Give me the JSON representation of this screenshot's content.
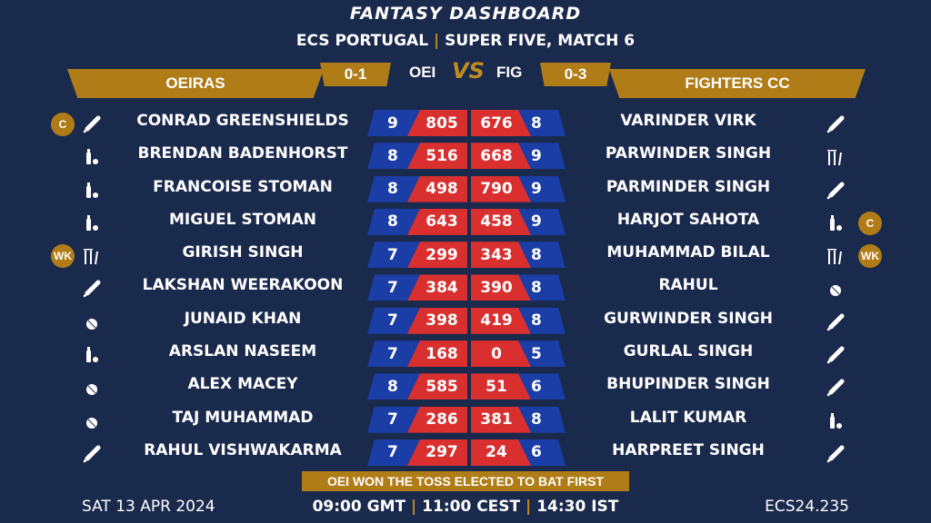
{
  "header": {
    "title": "FANTASY DASHBOARD",
    "league": "ECS PORTUGAL",
    "separator": "|",
    "match": "SUPER FIVE, MATCH 6"
  },
  "teams": {
    "left": {
      "name": "OEIRAS",
      "abbr": "OEI",
      "record": "0-1"
    },
    "right": {
      "name": "FIGHTERS CC",
      "abbr": "FIG",
      "record": "0-3"
    },
    "vs": "VS"
  },
  "players_left": [
    {
      "name": "CONRAD GREENSHIELDS",
      "credits": "9",
      "points": "805",
      "role_icon": "bat-icon",
      "badge": "C"
    },
    {
      "name": "BRENDAN BADENHORST",
      "credits": "8",
      "points": "516",
      "role_icon": "allrounder-icon",
      "badge": ""
    },
    {
      "name": "FRANCOISE STOMAN",
      "credits": "8",
      "points": "498",
      "role_icon": "allrounder-icon",
      "badge": ""
    },
    {
      "name": "MIGUEL STOMAN",
      "credits": "8",
      "points": "643",
      "role_icon": "allrounder-icon",
      "badge": ""
    },
    {
      "name": "GIRISH SINGH",
      "credits": "7",
      "points": "299",
      "role_icon": "wicket-icon",
      "badge": "WK"
    },
    {
      "name": "LAKSHAN WEERAKOON",
      "credits": "7",
      "points": "384",
      "role_icon": "bat-icon",
      "badge": ""
    },
    {
      "name": "JUNAID KHAN",
      "credits": "7",
      "points": "398",
      "role_icon": "ball-icon",
      "badge": ""
    },
    {
      "name": "ARSLAN NASEEM",
      "credits": "7",
      "points": "168",
      "role_icon": "allrounder-icon",
      "badge": ""
    },
    {
      "name": "ALEX MACEY",
      "credits": "8",
      "points": "585",
      "role_icon": "ball-icon",
      "badge": ""
    },
    {
      "name": "TAJ MUHAMMAD",
      "credits": "7",
      "points": "286",
      "role_icon": "ball-icon",
      "badge": ""
    },
    {
      "name": "RAHUL VISHWAKARMA",
      "credits": "7",
      "points": "297",
      "role_icon": "bat-icon",
      "badge": ""
    }
  ],
  "players_right": [
    {
      "name": "VARINDER VIRK",
      "credits": "8",
      "points": "676",
      "role_icon": "bat-icon",
      "badge": ""
    },
    {
      "name": "PARWINDER SINGH",
      "credits": "9",
      "points": "668",
      "role_icon": "wicket-icon",
      "badge": ""
    },
    {
      "name": "PARMINDER SINGH",
      "credits": "9",
      "points": "790",
      "role_icon": "bat-icon",
      "badge": ""
    },
    {
      "name": "HARJOT SAHOTA",
      "credits": "9",
      "points": "458",
      "role_icon": "allrounder-icon",
      "badge": "C"
    },
    {
      "name": "MUHAMMAD BILAL",
      "credits": "8",
      "points": "343",
      "role_icon": "wicket-icon",
      "badge": "WK"
    },
    {
      "name": "RAHUL",
      "credits": "8",
      "points": "390",
      "role_icon": "ball-icon",
      "badge": ""
    },
    {
      "name": "GURWINDER SINGH",
      "credits": "8",
      "points": "419",
      "role_icon": "bat-icon",
      "badge": ""
    },
    {
      "name": "GURLAL SINGH",
      "credits": "5",
      "points": "0",
      "role_icon": "bat-icon",
      "badge": ""
    },
    {
      "name": "BHUPINDER SINGH",
      "credits": "6",
      "points": "51",
      "role_icon": "bat-icon",
      "badge": ""
    },
    {
      "name": "LALIT KUMAR",
      "credits": "8",
      "points": "381",
      "role_icon": "allrounder-icon",
      "badge": ""
    },
    {
      "name": "HARPREET SINGH",
      "credits": "6",
      "points": "24",
      "role_icon": "bat-icon",
      "badge": ""
    }
  ],
  "toss": "OEI WON THE TOSS ELECTED TO BAT FIRST",
  "footer": {
    "date": "SAT 13 APR 2024",
    "time_gmt": "09:00 GMT",
    "time_cest": "11:00 CEST",
    "time_ist": "14:30 IST",
    "separator": "|",
    "code": "ECS24.235"
  },
  "colors": {
    "background": "#1a2a4d",
    "gold": "#b07c17",
    "blue": "#1a3da6",
    "red": "#d92f2f"
  }
}
